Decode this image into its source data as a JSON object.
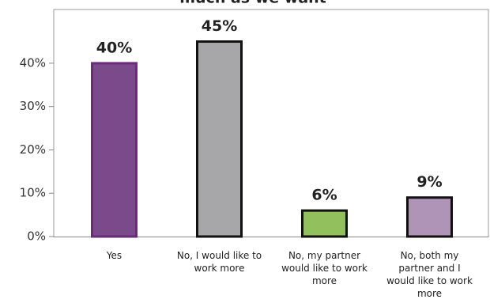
{
  "chart_data": {
    "type": "bar",
    "title": "much as we want",
    "categories": [
      [
        "Yes"
      ],
      [
        "No, I would like to",
        "work more"
      ],
      [
        "No, my partner",
        "would like to work",
        "more"
      ],
      [
        "No, both my",
        "partner and I",
        "would like to work",
        "more"
      ]
    ],
    "values": [
      40,
      45,
      6,
      9
    ],
    "value_labels": [
      "40%",
      "45%",
      "6%",
      "9%"
    ],
    "colors": [
      "#7b4a8a",
      "#a7a7a9",
      "#92c05c",
      "#b094b8"
    ],
    "ylim": [
      0,
      52.4
    ],
    "yticks": [
      {
        "value": 0,
        "label": "0%"
      },
      {
        "value": 10,
        "label": "10%"
      },
      {
        "value": 20,
        "label": "20%"
      },
      {
        "value": 30,
        "label": "30%"
      },
      {
        "value": 40,
        "label": "40%"
      }
    ],
    "grid": false
  }
}
